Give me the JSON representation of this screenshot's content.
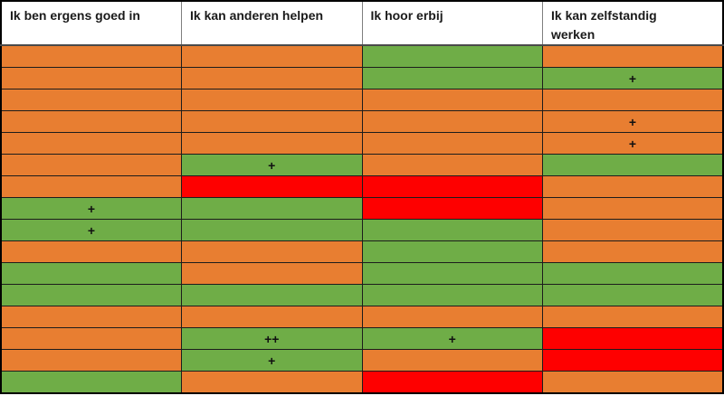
{
  "table": {
    "columns": [
      {
        "label": "Ik ben ergens goed in"
      },
      {
        "label": "Ik kan anderen helpen"
      },
      {
        "label": "Ik hoor erbij"
      },
      {
        "label": "Ik kan zelfstandig werken"
      }
    ],
    "palette": {
      "orange": "#E87E31",
      "green": "#6FAD47",
      "red": "#FE0000"
    },
    "mark_color": "#111111",
    "rows": [
      {
        "cells": [
          {
            "color": "orange",
            "mark": ""
          },
          {
            "color": "orange",
            "mark": ""
          },
          {
            "color": "green",
            "mark": ""
          },
          {
            "color": "orange",
            "mark": ""
          }
        ]
      },
      {
        "cells": [
          {
            "color": "orange",
            "mark": ""
          },
          {
            "color": "orange",
            "mark": ""
          },
          {
            "color": "green",
            "mark": ""
          },
          {
            "color": "green",
            "mark": "+"
          }
        ]
      },
      {
        "cells": [
          {
            "color": "orange",
            "mark": ""
          },
          {
            "color": "orange",
            "mark": ""
          },
          {
            "color": "orange",
            "mark": ""
          },
          {
            "color": "orange",
            "mark": ""
          }
        ]
      },
      {
        "cells": [
          {
            "color": "orange",
            "mark": ""
          },
          {
            "color": "orange",
            "mark": ""
          },
          {
            "color": "orange",
            "mark": ""
          },
          {
            "color": "orange",
            "mark": "+"
          }
        ]
      },
      {
        "cells": [
          {
            "color": "orange",
            "mark": ""
          },
          {
            "color": "orange",
            "mark": ""
          },
          {
            "color": "orange",
            "mark": ""
          },
          {
            "color": "orange",
            "mark": "+"
          }
        ]
      },
      {
        "cells": [
          {
            "color": "orange",
            "mark": ""
          },
          {
            "color": "green",
            "mark": "+"
          },
          {
            "color": "orange",
            "mark": ""
          },
          {
            "color": "green",
            "mark": ""
          }
        ]
      },
      {
        "cells": [
          {
            "color": "orange",
            "mark": ""
          },
          {
            "color": "red",
            "mark": ""
          },
          {
            "color": "red",
            "mark": ""
          },
          {
            "color": "orange",
            "mark": ""
          }
        ]
      },
      {
        "cells": [
          {
            "color": "green",
            "mark": "+"
          },
          {
            "color": "green",
            "mark": ""
          },
          {
            "color": "red",
            "mark": ""
          },
          {
            "color": "orange",
            "mark": ""
          }
        ]
      },
      {
        "cells": [
          {
            "color": "green",
            "mark": "+"
          },
          {
            "color": "green",
            "mark": ""
          },
          {
            "color": "green",
            "mark": ""
          },
          {
            "color": "orange",
            "mark": ""
          }
        ]
      },
      {
        "cells": [
          {
            "color": "orange",
            "mark": ""
          },
          {
            "color": "orange",
            "mark": ""
          },
          {
            "color": "green",
            "mark": ""
          },
          {
            "color": "orange",
            "mark": ""
          }
        ]
      },
      {
        "cells": [
          {
            "color": "green",
            "mark": ""
          },
          {
            "color": "orange",
            "mark": ""
          },
          {
            "color": "green",
            "mark": ""
          },
          {
            "color": "green",
            "mark": ""
          }
        ]
      },
      {
        "cells": [
          {
            "color": "green",
            "mark": ""
          },
          {
            "color": "green",
            "mark": ""
          },
          {
            "color": "green",
            "mark": ""
          },
          {
            "color": "green",
            "mark": ""
          }
        ]
      },
      {
        "cells": [
          {
            "color": "orange",
            "mark": ""
          },
          {
            "color": "orange",
            "mark": ""
          },
          {
            "color": "orange",
            "mark": ""
          },
          {
            "color": "orange",
            "mark": ""
          }
        ]
      },
      {
        "cells": [
          {
            "color": "orange",
            "mark": ""
          },
          {
            "color": "green",
            "mark": "++"
          },
          {
            "color": "green",
            "mark": "+"
          },
          {
            "color": "red",
            "mark": ""
          }
        ]
      },
      {
        "cells": [
          {
            "color": "orange",
            "mark": ""
          },
          {
            "color": "green",
            "mark": "+"
          },
          {
            "color": "orange",
            "mark": ""
          },
          {
            "color": "red",
            "mark": ""
          }
        ]
      },
      {
        "cells": [
          {
            "color": "green",
            "mark": ""
          },
          {
            "color": "orange",
            "mark": ""
          },
          {
            "color": "red",
            "mark": ""
          },
          {
            "color": "orange",
            "mark": ""
          }
        ]
      }
    ]
  }
}
